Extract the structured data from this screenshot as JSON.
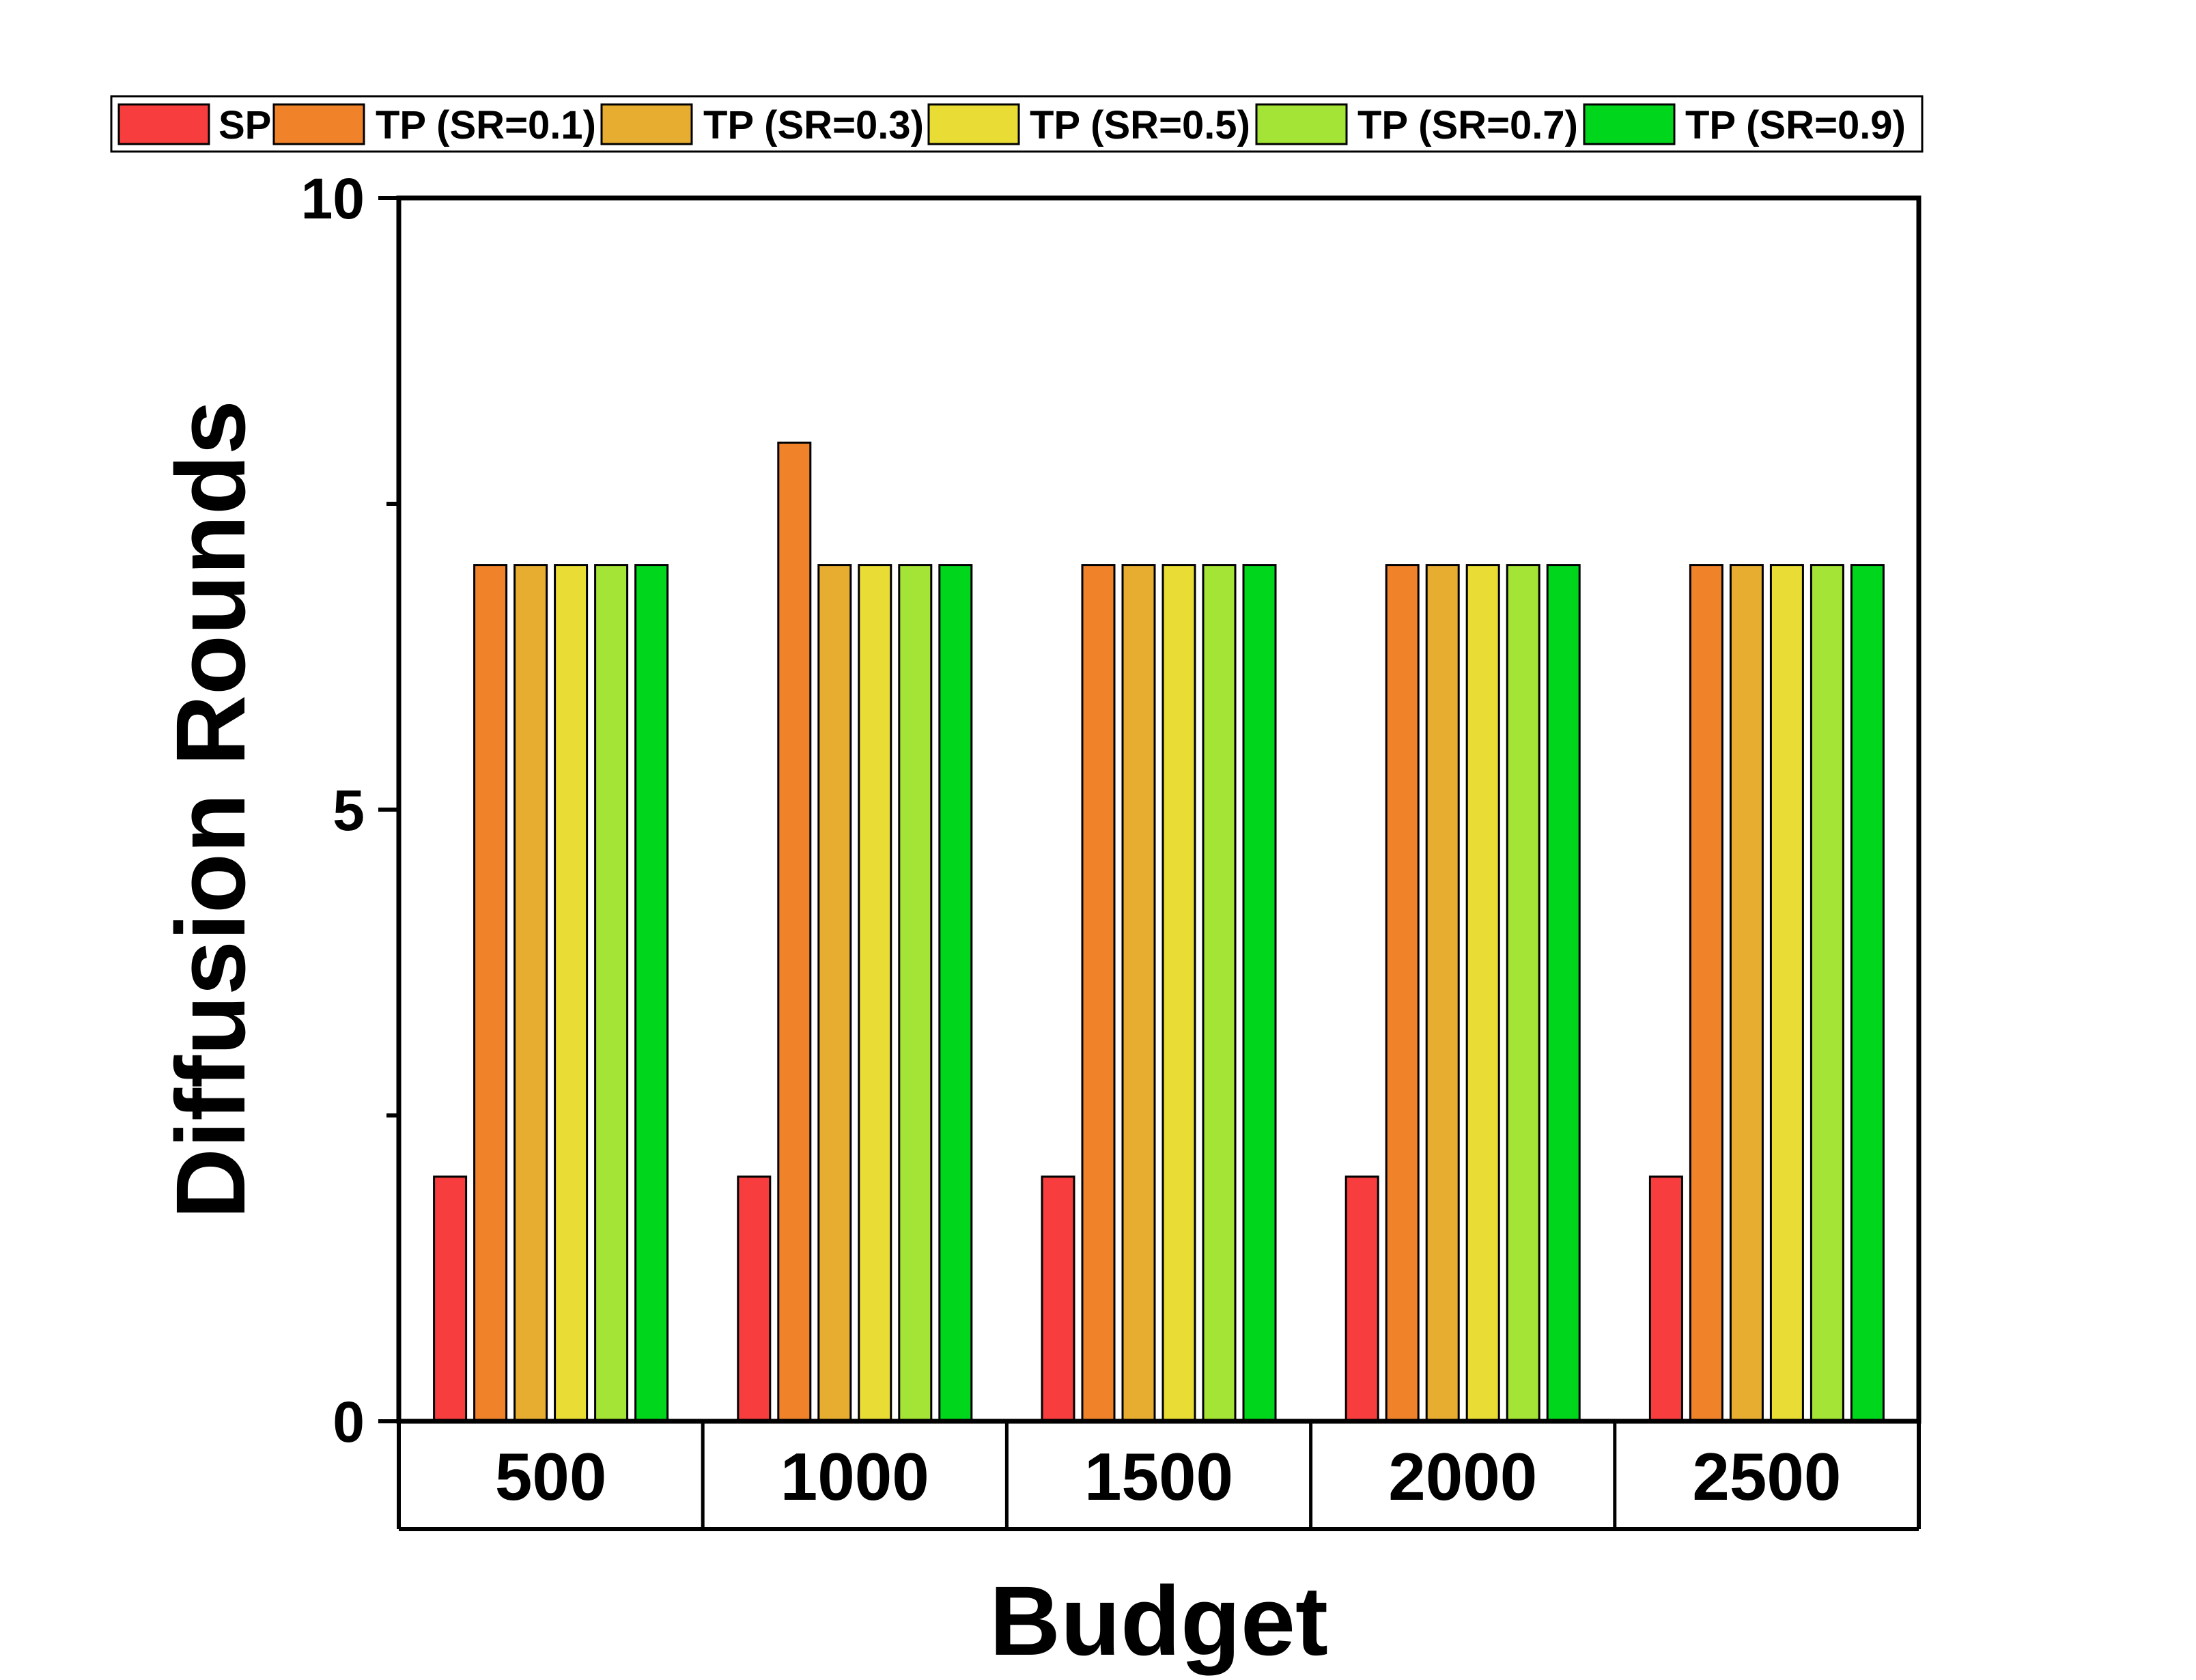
{
  "chart_data": {
    "type": "bar",
    "title": "",
    "xlabel": "Budget",
    "ylabel": "Diffusion Rounds",
    "ylim": [
      0,
      10
    ],
    "yticks": [
      "0",
      "5",
      "10"
    ],
    "categories": [
      "500",
      "1000",
      "1500",
      "2000",
      "2500"
    ],
    "legend_position": "top",
    "grid": false,
    "series": [
      {
        "name": "SP",
        "color": "#f73d3d",
        "values": [
          2,
          2,
          2,
          2,
          2
        ]
      },
      {
        "name": "TP (SR=0.1)",
        "color": "#f0832a",
        "values": [
          7,
          8,
          7,
          7,
          7
        ]
      },
      {
        "name": "TP (SR=0.3)",
        "color": "#e6ad30",
        "values": [
          7,
          7,
          7,
          7,
          7
        ]
      },
      {
        "name": "TP (SR=0.5)",
        "color": "#e8dc35",
        "values": [
          7,
          7,
          7,
          7,
          7
        ]
      },
      {
        "name": "TP (SR=0.7)",
        "color": "#a4e436",
        "values": [
          7,
          7,
          7,
          7,
          7
        ]
      },
      {
        "name": "TP (SR=0.9)",
        "color": "#00d61c",
        "values": [
          7,
          7,
          7,
          7,
          7
        ]
      }
    ]
  }
}
